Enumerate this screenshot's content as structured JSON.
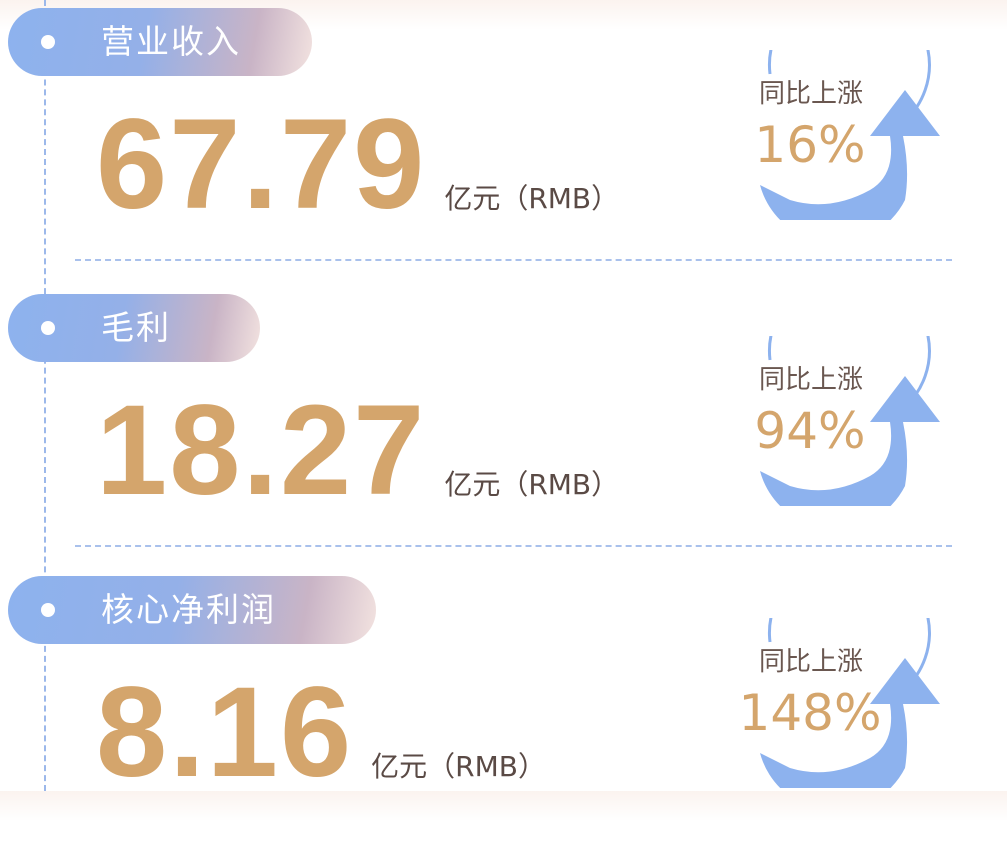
{
  "metrics": [
    {
      "label": "营业收入",
      "value": "67.79",
      "unit": "亿元（RMB）",
      "change_label": "同比上涨",
      "change": "16%"
    },
    {
      "label": "毛利",
      "value": "18.27",
      "unit": "亿元（RMB）",
      "change_label": "同比上涨",
      "change": "94%"
    },
    {
      "label": "核心净利润",
      "value": "8.16",
      "unit": "亿元（RMB）",
      "change_label": "同比上涨",
      "change": "148%"
    }
  ],
  "colors": {
    "accent_blue": "#8db2ee",
    "value_gold": "#d4a56c",
    "text_brown": "#5a4a45"
  },
  "icons": {
    "badge": "circular-up-arrow-icon",
    "bullet": "dot-icon"
  }
}
